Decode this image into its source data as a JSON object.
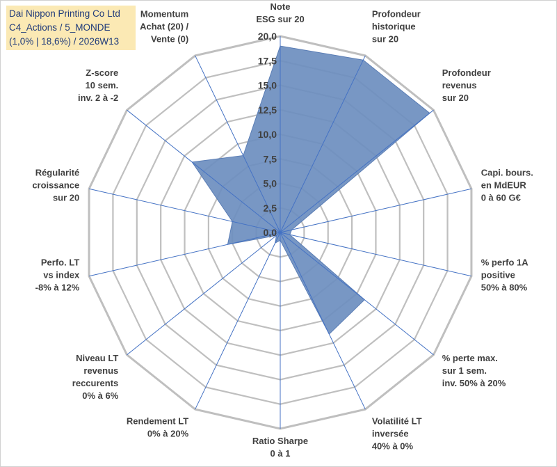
{
  "title": {
    "line1": "Dai Nippon Printing Co Ltd",
    "line2": "C4_Actions / 5_MONDE",
    "line3": "(1,0% | 18,6%) / 2026W13"
  },
  "chart_data": {
    "type": "radar",
    "rmin": 0,
    "rmax": 20,
    "step": 2.5,
    "tick_labels": [
      "0,0",
      "2,5",
      "5,0",
      "7,5",
      "10,0",
      "12,5",
      "15,0",
      "17,5",
      "20,0"
    ],
    "axes": [
      [
        "Note",
        "ESG sur 20"
      ],
      [
        "Profondeur",
        "historique",
        "sur 20"
      ],
      [
        "Profondeur",
        "revenus",
        "sur 20"
      ],
      [
        "Capi. bours.",
        "en MdEUR",
        "0 à 60 G€"
      ],
      [
        "% perfo 1A",
        "positive",
        "50% à 80%"
      ],
      [
        "% perte max.",
        "sur 1 sem.",
        "inv. 50% à 20%"
      ],
      [
        "Volatilité LT",
        "inversée",
        "40% à 0%"
      ],
      [
        "Ratio Sharpe",
        "0 à 1"
      ],
      [
        "Rendement LT",
        "0% à 20%"
      ],
      [
        "Niveau LT",
        "revenus",
        "reccurents",
        "0% à 6%"
      ],
      [
        "Perfo. LT",
        "vs index",
        "-8% à 12%"
      ],
      [
        "Régularité",
        "croissance",
        "sur 20"
      ],
      [
        "Z-score",
        "10 sem.",
        "inv. 2 à -2"
      ],
      [
        "Momentum",
        "Achat (20) /",
        "Vente (0)"
      ]
    ],
    "values": [
      19.0,
      19.5,
      19.5,
      1.2,
      1.0,
      11.0,
      11.5,
      0.8,
      1.2,
      0.5,
      5.5,
      5.0,
      11.5,
      8.7
    ],
    "series_color": "#6c8ebf",
    "line_color": "#4472c4",
    "grid_color": "#bfbfbf"
  }
}
